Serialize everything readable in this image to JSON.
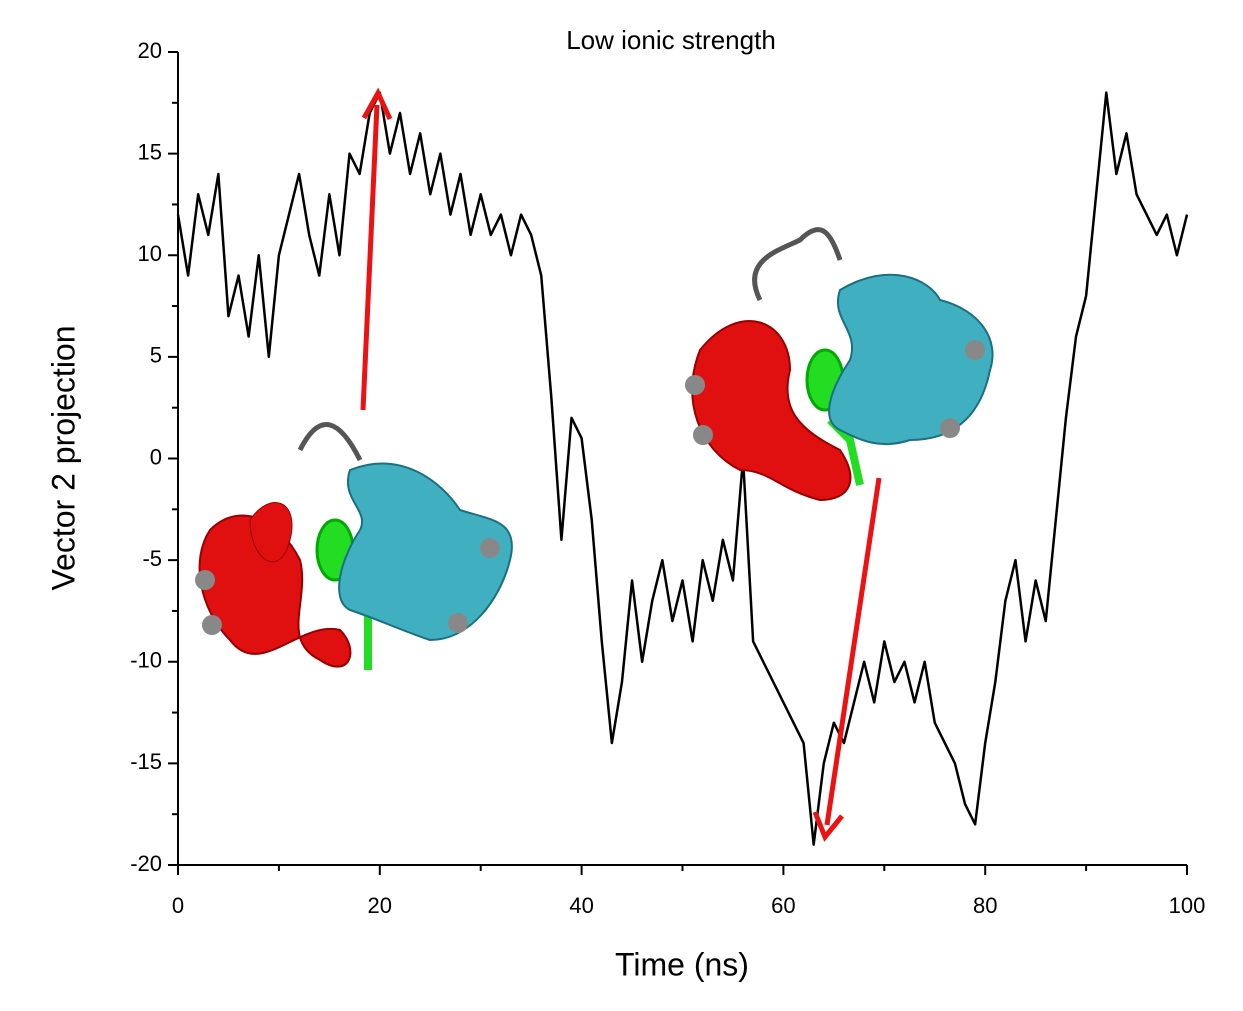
{
  "chart_data": {
    "type": "line",
    "title": "Low ionic strength",
    "x_label": "Time (ns)",
    "y_label": "Vector 2 projection",
    "x": [
      0,
      1,
      2,
      3,
      4,
      5,
      6,
      7,
      8,
      9,
      10,
      11,
      12,
      13,
      14,
      15,
      16,
      17,
      18,
      19,
      20,
      21,
      22,
      23,
      24,
      25,
      26,
      27,
      28,
      29,
      30,
      31,
      32,
      33,
      34,
      35,
      36,
      37,
      38,
      39,
      40,
      41,
      42,
      43,
      44,
      45,
      46,
      47,
      48,
      49,
      50,
      51,
      52,
      53,
      54,
      55,
      56,
      57,
      58,
      59,
      60,
      61,
      62,
      63,
      64,
      65,
      66,
      67,
      68,
      69,
      70,
      71,
      72,
      73,
      74,
      75,
      76,
      77,
      78,
      79,
      80,
      81,
      82,
      83,
      84,
      85,
      86,
      87,
      88,
      89,
      90,
      91,
      92,
      93,
      94,
      95,
      96,
      97,
      98,
      99,
      100
    ],
    "series": [
      {
        "color": "#000000",
        "values": [
          12,
          9,
          13,
          11,
          14,
          7,
          9,
          6,
          10,
          5,
          10,
          12,
          14,
          11,
          9,
          13,
          10,
          15,
          14,
          17,
          18,
          15,
          17,
          14,
          16,
          13,
          15,
          12,
          14,
          11,
          13,
          11,
          12,
          10,
          12,
          11,
          9,
          3,
          -4,
          2,
          1,
          -3,
          -9,
          -14,
          -11,
          -6,
          -10,
          -7,
          -5,
          -8,
          -6,
          -9,
          -5,
          -7,
          -4,
          -6,
          0,
          -9,
          -10,
          -11,
          -12,
          -13,
          -14,
          -19,
          -15,
          -13,
          -14,
          -12,
          -10,
          -12,
          -9,
          -11,
          -10,
          -12,
          -10,
          -13,
          -14,
          -15,
          -17,
          -18,
          -14,
          -11,
          -7,
          -5,
          -9,
          -6,
          -8,
          -3,
          2,
          6,
          8,
          13,
          18,
          14,
          16,
          13,
          12,
          11,
          12,
          10,
          12
        ]
      }
    ],
    "xlim": [
      0,
      100
    ],
    "xticks": [
      0,
      20,
      40,
      60,
      80,
      100
    ],
    "xminorticks": [
      10,
      30,
      50,
      70,
      90
    ],
    "ylim": [
      -20,
      20
    ],
    "yticks": [
      -20,
      -15,
      -10,
      -5,
      0,
      5,
      10,
      15,
      20
    ],
    "yminorticks": [
      -17.5,
      -12.5,
      -7.5,
      -2.5,
      2.5,
      7.5,
      12.5,
      17.5
    ]
  }
}
